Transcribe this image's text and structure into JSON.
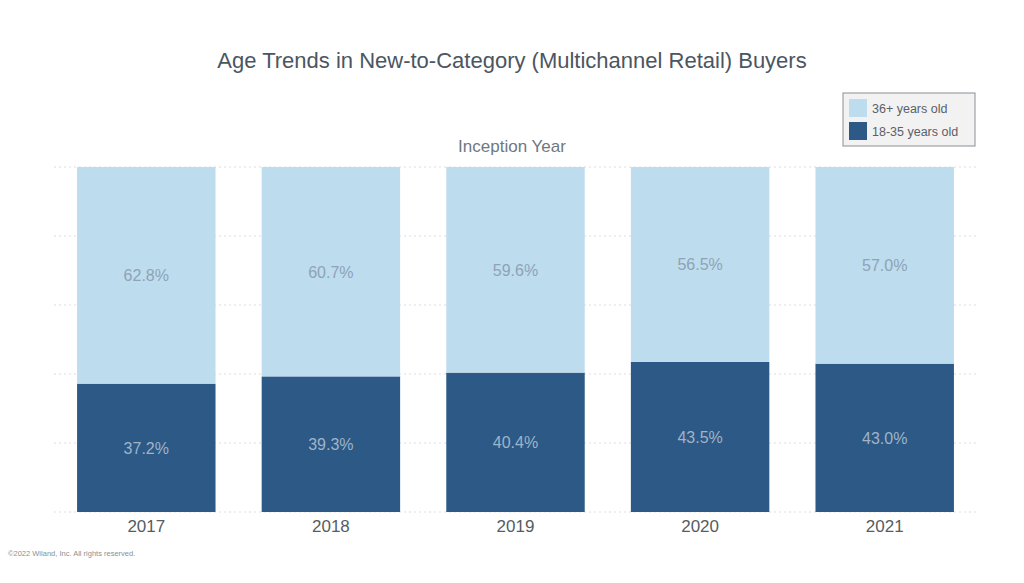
{
  "chart_data": {
    "type": "bar",
    "stacked": true,
    "title": "Age Trends in New-to-Category (Multichannel Retail) Buyers",
    "subtitle": "Inception Year",
    "annotations": [
      "©2022 Wiland, Inc. All rights reserved."
    ],
    "categories": [
      "2017",
      "2018",
      "2019",
      "2020",
      "2021"
    ],
    "series": [
      {
        "name": "18-35 years old",
        "color": "#2c5985",
        "values": [
          37.2,
          39.3,
          40.4,
          43.5,
          43.0
        ],
        "value_labels": [
          "37.2%",
          "39.3%",
          "40.4%",
          "43.5%",
          "43.0%"
        ]
      },
      {
        "name": "36+ years old",
        "color": "#bddcee",
        "values": [
          62.8,
          60.7,
          59.6,
          56.5,
          57.0
        ],
        "value_labels": [
          "62.8%",
          "60.7%",
          "59.6%",
          "56.5%",
          "57.0%"
        ]
      }
    ],
    "ylim": [
      0,
      100
    ],
    "yticks": [
      0,
      20,
      40,
      60,
      80,
      100
    ],
    "grid": true,
    "legend": "top-right",
    "data_labels": true,
    "tick_labels": "x"
  }
}
